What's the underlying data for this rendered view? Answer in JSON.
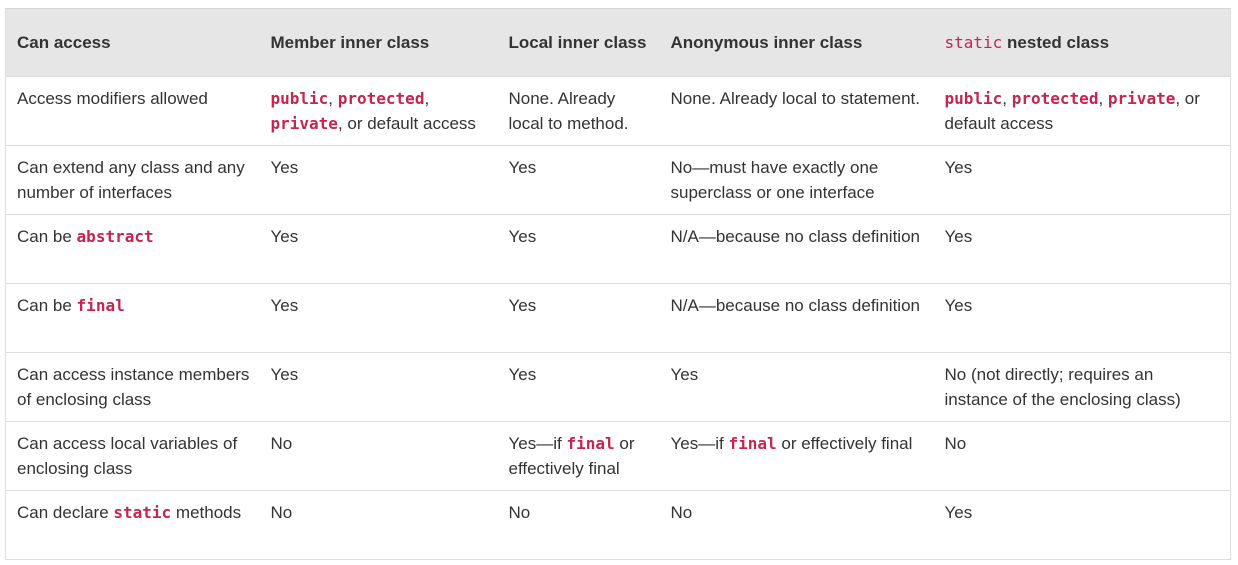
{
  "table": {
    "headers": {
      "col1": "Can access",
      "col2": "Member inner class",
      "col3": "Local inner class",
      "col4": "Anonymous inner class",
      "col5_code": "static",
      "col5_text": " nested class"
    },
    "rows": [
      {
        "c1": "Access modifiers allowed",
        "c2": {
          "code1": "public",
          "sep1": ", ",
          "code2": "protected",
          "sep2": ", ",
          "code3": "private",
          "tail": ", or default access"
        },
        "c3": "None. Already local to method.",
        "c4": "None. Already local to statement.",
        "c5": {
          "code1": "public",
          "sep1": ", ",
          "code2": "protected",
          "sep2": ", ",
          "code3": "private",
          "tail": ", or default access"
        }
      },
      {
        "c1": "Can extend any class and any number of interfaces",
        "c2": "Yes",
        "c3": "Yes",
        "c4": "No—must have exactly one superclass or one interface",
        "c5": "Yes"
      },
      {
        "c1_pre": "Can be ",
        "c1_code": "abstract",
        "c2": "Yes",
        "c3": "Yes",
        "c4": "N/A—because no class definition",
        "c5": "Yes"
      },
      {
        "c1_pre": "Can be ",
        "c1_code": "final",
        "c2": "Yes",
        "c3": "Yes",
        "c4": "N/A—because no class definition",
        "c5": "Yes"
      },
      {
        "c1": "Can access instance members of enclosing class",
        "c2": "Yes",
        "c3": "Yes",
        "c4": "Yes",
        "c5": "No (not directly; requires an instance of the enclosing class)"
      },
      {
        "c1": "Can access local variables of enclosing class",
        "c2": "No",
        "c3_pre": "Yes—if ",
        "c3_code": "final",
        "c3_post": " or effectively final",
        "c4_pre": "Yes—if ",
        "c4_code": "final",
        "c4_post": " or effectively final",
        "c5": "No"
      },
      {
        "c1_pre": "Can declare ",
        "c1_code": "static",
        "c1_post": " methods",
        "c2": "No",
        "c3": "No",
        "c4": "No",
        "c5": "Yes"
      }
    ]
  }
}
